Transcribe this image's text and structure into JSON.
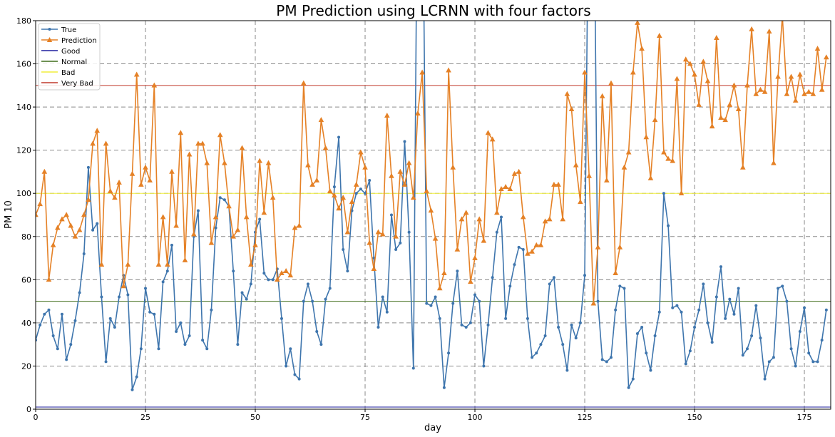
{
  "chart_data": {
    "type": "line",
    "title": "PM Prediction using LCRNN with four factors",
    "xlabel": "day",
    "ylabel": "PM 10",
    "xlim": [
      0,
      181
    ],
    "ylim": [
      0,
      180
    ],
    "x_ticks": [
      0,
      25,
      50,
      75,
      100,
      125,
      150,
      175
    ],
    "y_ticks": [
      0,
      20,
      40,
      60,
      80,
      100,
      120,
      140,
      160,
      180
    ],
    "grid": true,
    "legend_position": "top-left",
    "series": [
      {
        "name": "True",
        "color": "#3e75ad",
        "marker": "dot",
        "values": [
          32,
          39,
          44,
          46,
          34,
          28,
          44,
          23,
          30,
          41,
          54,
          72,
          112,
          83,
          86,
          52,
          22,
          42,
          38,
          52,
          62,
          53,
          9,
          15,
          28,
          56,
          45,
          44,
          28,
          59,
          64,
          76,
          36,
          40,
          30,
          34,
          80,
          92,
          32,
          28,
          46,
          84,
          98,
          97,
          94,
          64,
          30,
          54,
          51,
          58,
          82,
          88,
          63,
          60,
          60,
          65,
          42,
          20,
          28,
          16,
          14,
          50,
          58,
          50,
          36,
          30,
          51,
          56,
          103,
          126,
          74,
          64,
          92,
          100,
          102,
          100,
          106,
          70,
          38,
          52,
          45,
          90,
          74,
          77,
          124,
          82,
          19,
          270,
          270,
          49,
          48,
          52,
          42,
          10,
          26,
          49,
          64,
          39,
          38,
          40,
          53,
          50,
          20,
          39,
          61,
          82,
          89,
          42,
          57,
          67,
          75,
          74,
          42,
          24,
          26,
          30,
          34,
          58,
          61,
          38,
          30,
          18,
          39,
          33,
          40,
          62,
          270,
          270,
          50,
          23,
          22,
          24,
          46,
          57,
          56,
          10,
          14,
          35,
          38,
          26,
          18,
          34,
          45,
          100,
          85,
          47,
          48,
          45,
          21,
          27,
          38,
          46,
          58,
          40,
          31,
          52,
          66,
          42,
          51,
          44,
          56,
          25,
          28,
          34,
          48,
          33,
          14,
          22,
          24,
          56,
          57,
          50,
          28,
          20,
          36,
          47,
          26,
          22,
          22,
          32,
          46
        ]
      },
      {
        "name": "Prediction",
        "color": "#e58126",
        "marker": "triangle",
        "values": [
          90,
          95,
          110,
          60,
          76,
          84,
          88,
          90,
          85,
          80,
          83,
          90,
          97,
          123,
          129,
          67,
          123,
          101,
          98,
          105,
          57,
          67,
          109,
          155,
          104,
          112,
          106,
          150,
          67,
          89,
          67,
          110,
          85,
          128,
          69,
          118,
          81,
          123,
          123,
          114,
          77,
          89,
          127,
          114,
          94,
          80,
          83,
          121,
          89,
          67,
          76,
          115,
          91,
          114,
          98,
          60,
          63,
          64,
          62,
          84,
          85,
          151,
          113,
          104,
          106,
          134,
          121,
          101,
          99,
          93,
          98,
          82,
          96,
          104,
          119,
          112,
          77,
          65,
          82,
          81,
          136,
          108,
          80,
          110,
          104,
          114,
          98,
          137,
          156,
          101,
          92,
          79,
          56,
          63,
          157,
          112,
          74,
          88,
          91,
          59,
          70,
          88,
          78,
          128,
          125,
          91,
          102,
          103,
          102,
          109,
          110,
          89,
          72,
          73,
          76,
          76,
          87,
          88,
          104,
          104,
          88,
          146,
          139,
          113,
          96,
          156,
          108,
          49,
          75,
          145,
          106,
          151,
          63,
          75,
          112,
          119,
          156,
          179,
          167,
          126,
          107,
          134,
          173,
          119,
          116,
          115,
          153,
          100,
          162,
          160,
          155,
          141,
          161,
          152,
          131,
          172,
          135,
          134,
          141,
          150,
          139,
          112,
          150,
          176,
          146,
          148,
          147,
          175,
          114,
          154,
          182,
          146,
          154,
          143,
          155,
          146,
          147,
          146,
          167,
          148,
          163
        ]
      }
    ],
    "reference_lines": [
      {
        "name": "Good",
        "y": 0,
        "color": "#1f1f9e"
      },
      {
        "name": "Normal",
        "y": 50,
        "color": "#3f6d1a"
      },
      {
        "name": "Bad",
        "y": 100,
        "color": "#f0ee3c"
      },
      {
        "name": "Very Bad",
        "y": 150,
        "color": "#c0392b"
      }
    ]
  }
}
